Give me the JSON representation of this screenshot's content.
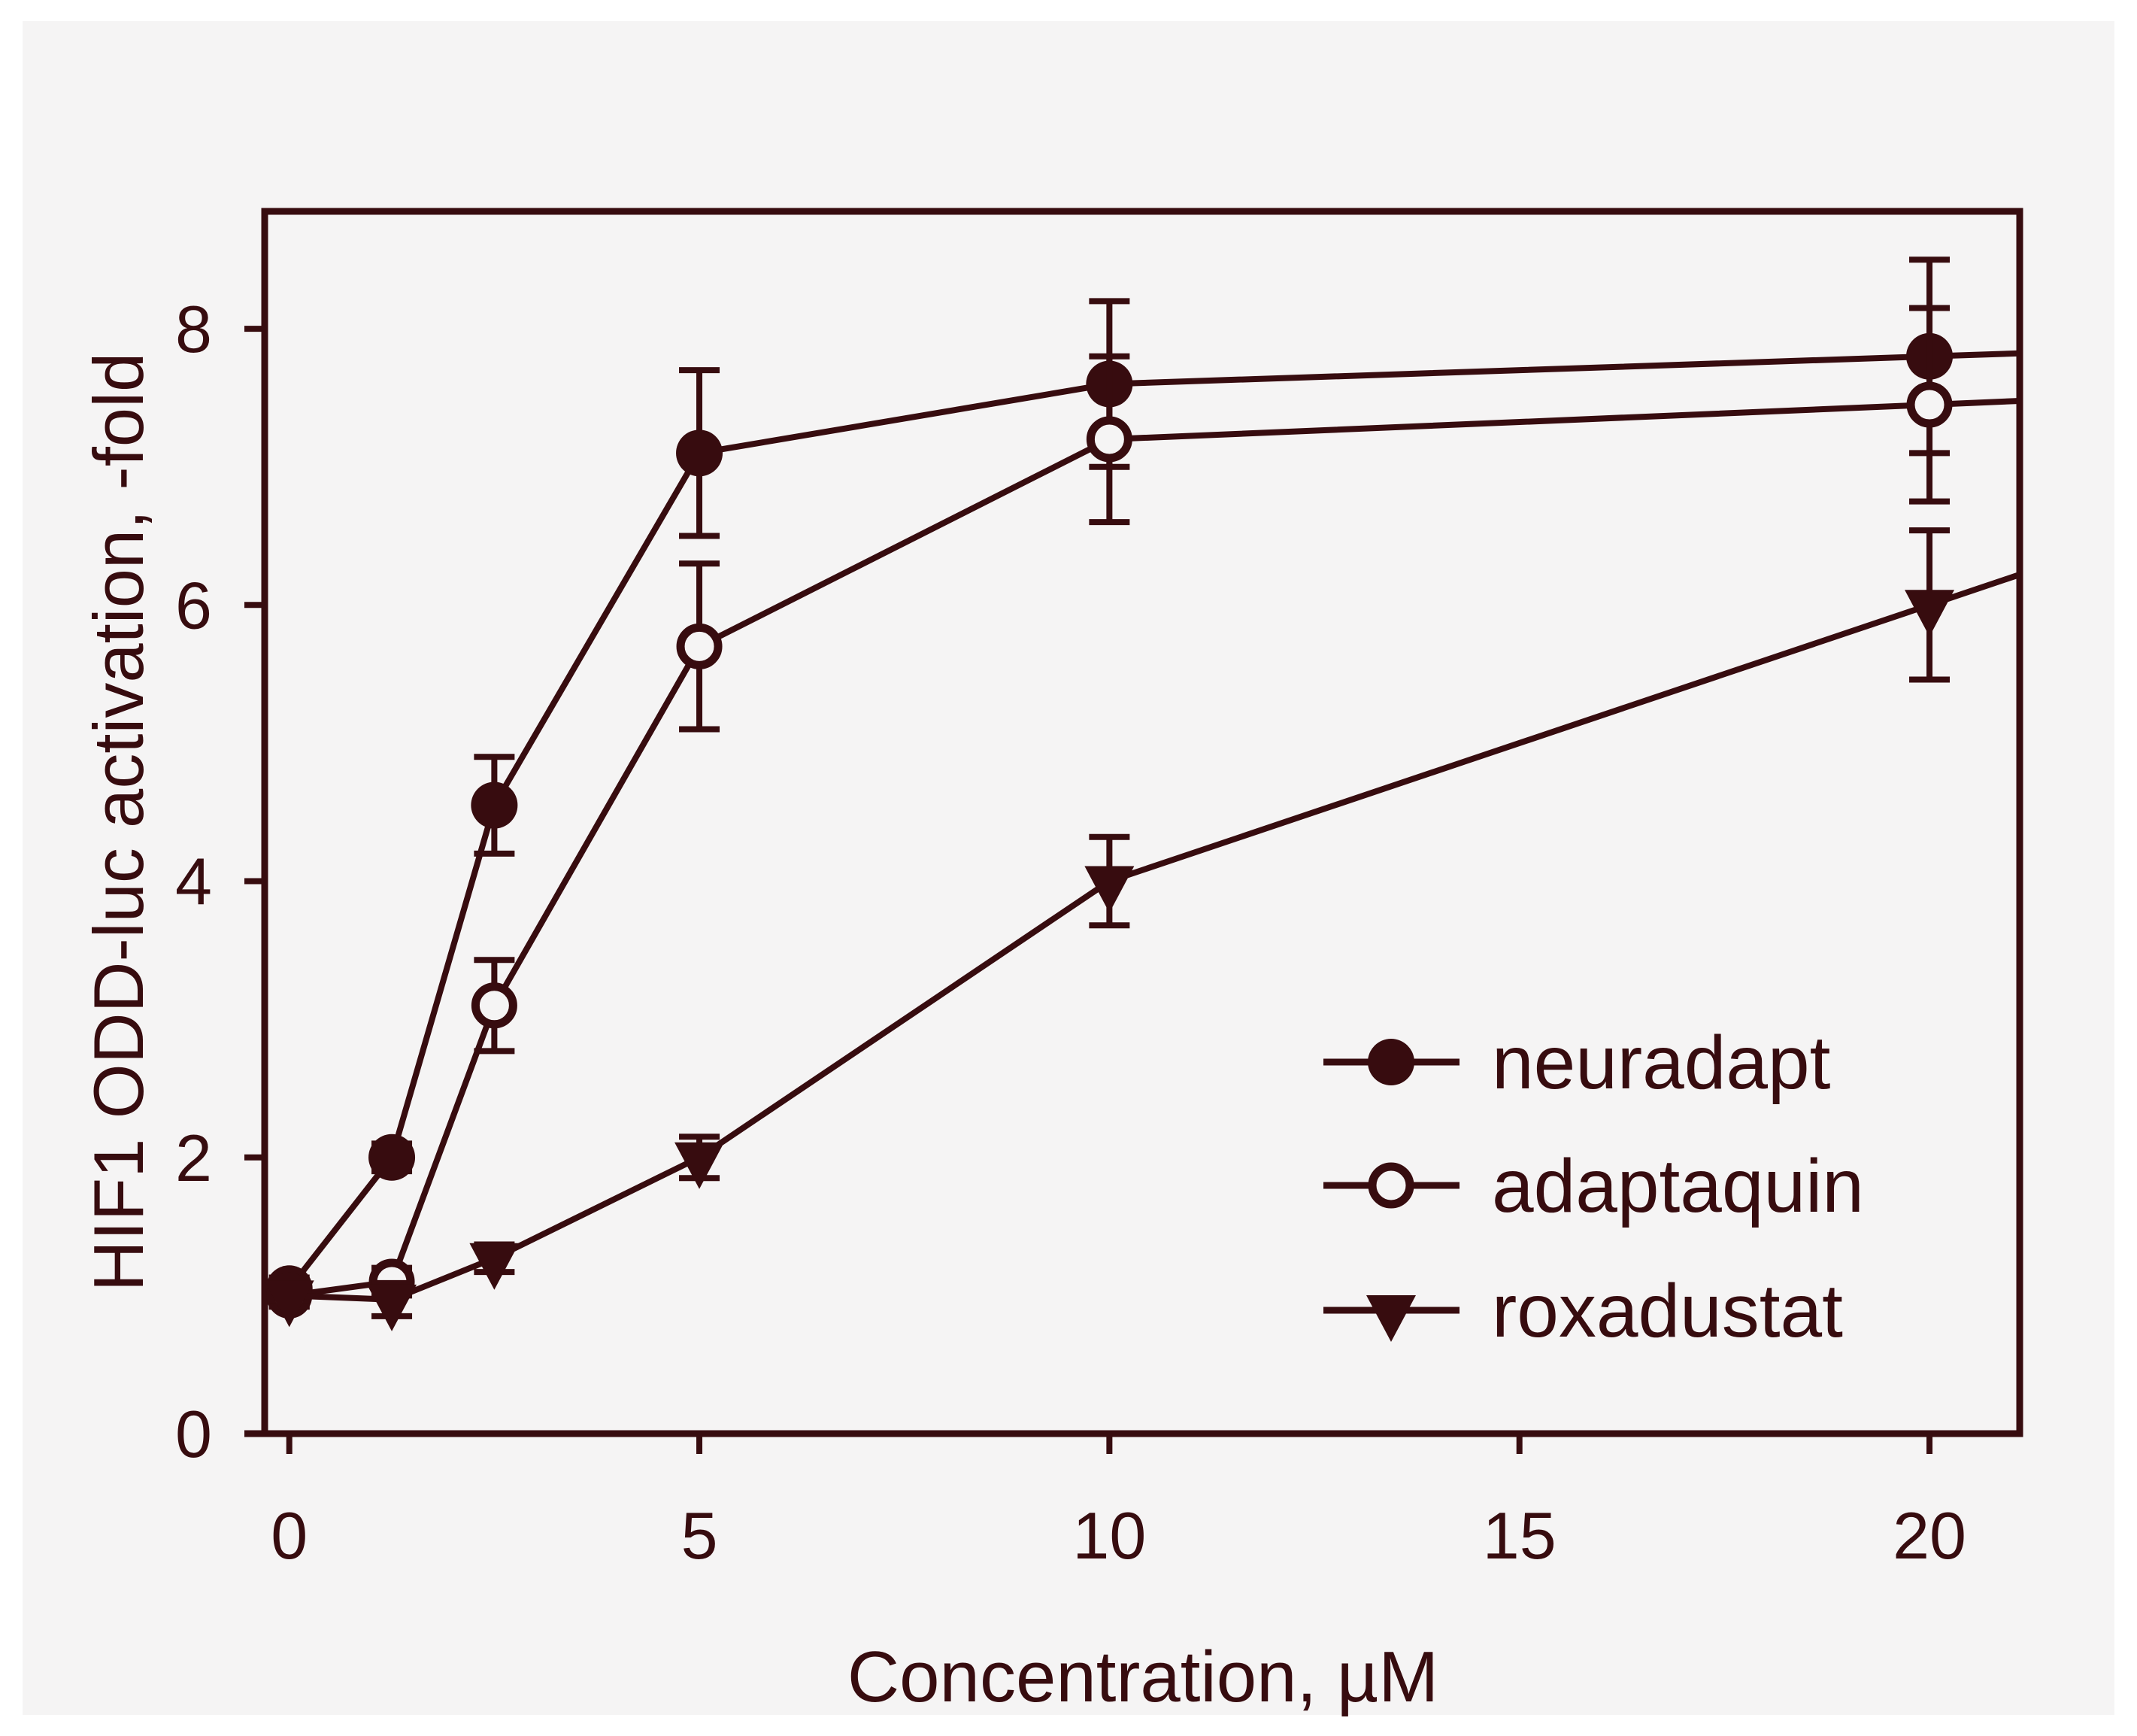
{
  "chart_data": {
    "type": "line",
    "title": "",
    "xlabel": "Concentration, µM",
    "ylabel": "HIF1 ODD-luc activation, -fold",
    "x_ticks": [
      "0",
      "5",
      "10",
      "15",
      "20"
    ],
    "x_tick_values": [
      0,
      5,
      10,
      15,
      20
    ],
    "y_ticks": [
      "0",
      "2",
      "4",
      "6",
      "8"
    ],
    "y_tick_values": [
      0,
      2,
      4,
      6,
      8
    ],
    "xlim": [
      -0.3,
      21.1
    ],
    "ylim": [
      0,
      8.85
    ],
    "grid": false,
    "legend_position": "inside-right",
    "x": [
      0,
      1.25,
      2.5,
      5,
      10,
      20
    ],
    "series": [
      {
        "name": "neuradapt",
        "marker": "filled-circle",
        "values": [
          1.05,
          2.0,
          4.55,
          7.1,
          7.6,
          7.8
        ],
        "errors": [
          0.08,
          0.1,
          0.35,
          0.6,
          0.6,
          0.7
        ]
      },
      {
        "name": "adaptaquin",
        "marker": "open-circle",
        "values": [
          1.0,
          1.1,
          3.1,
          5.7,
          7.2,
          7.45
        ],
        "errors": [
          0.08,
          0.1,
          0.33,
          0.6,
          0.6,
          0.7
        ]
      },
      {
        "name": "roxadustat",
        "marker": "filled-triangle-down",
        "values": [
          1.0,
          0.97,
          1.27,
          2.0,
          4.0,
          6.0
        ],
        "errors": [
          0.08,
          0.12,
          0.1,
          0.15,
          0.32,
          0.54
        ]
      }
    ],
    "extend_lines_to_right_frame": true,
    "colors": {
      "ink": "#370c0f",
      "panel_background": "#f5f4f4",
      "page_background": "#ffffff"
    }
  }
}
